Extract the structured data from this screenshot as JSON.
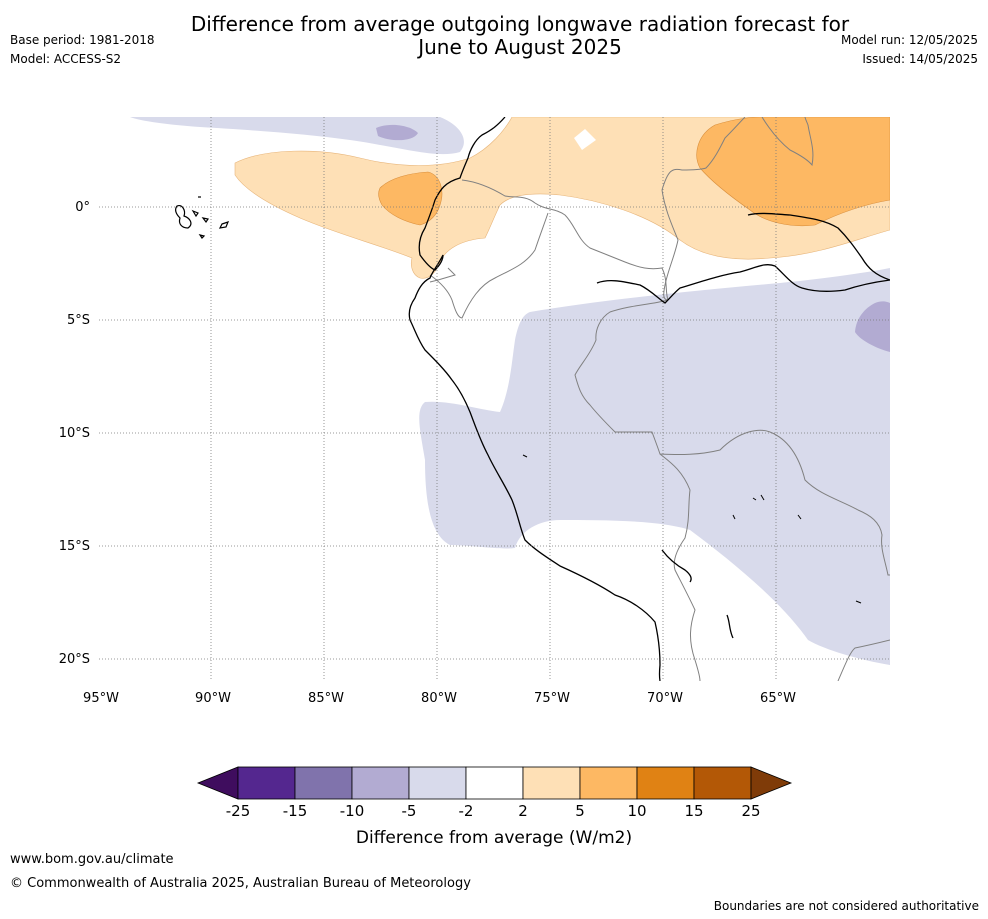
{
  "header": {
    "title_line1": "Difference from average outgoing longwave radiation forecast for",
    "title_line2": "June to August 2025",
    "base_period": "Base period: 1981-2018",
    "model": "Model: ACCESS-S2",
    "model_run": "Model run: 12/05/2025",
    "issued": "Issued: 14/05/2025"
  },
  "map": {
    "lat_ticks": [
      "0°",
      "5°S",
      "10°S",
      "15°S",
      "20°S"
    ],
    "lon_ticks": [
      "95°W",
      "90°W",
      "85°W",
      "80°W",
      "75°W",
      "70°W",
      "65°W"
    ],
    "regions": [
      {
        "name": "enhanced-olr-west",
        "category": "5 to 10"
      },
      {
        "name": "enhanced-olr-northeast",
        "category": "5 to 10"
      },
      {
        "name": "positive-olr-band",
        "category": "2 to 5"
      },
      {
        "name": "negative-olr-south",
        "category": "-5 to -2"
      },
      {
        "name": "negative-olr-east",
        "category": "-10 to -5"
      }
    ]
  },
  "colorbar": {
    "boundaries": [
      "-25",
      "-15",
      "-10",
      "-5",
      "-2",
      "2",
      "5",
      "10",
      "15",
      "25"
    ],
    "colors": [
      "#3f0d5e",
      "#54278f",
      "#8073ac",
      "#b2abd2",
      "#d8daeb",
      "#ffffff",
      "#fee0b6",
      "#fdb863",
      "#e08214",
      "#b35806",
      "#7f3b08"
    ],
    "label": "Difference from average (W/m2)"
  },
  "footer": {
    "website": "www.bom.gov.au/climate",
    "copyright": "© Commonwealth of Australia 2025, Australian Bureau of Meteorology",
    "disclaimer": "Boundaries are not considered authoritative"
  }
}
